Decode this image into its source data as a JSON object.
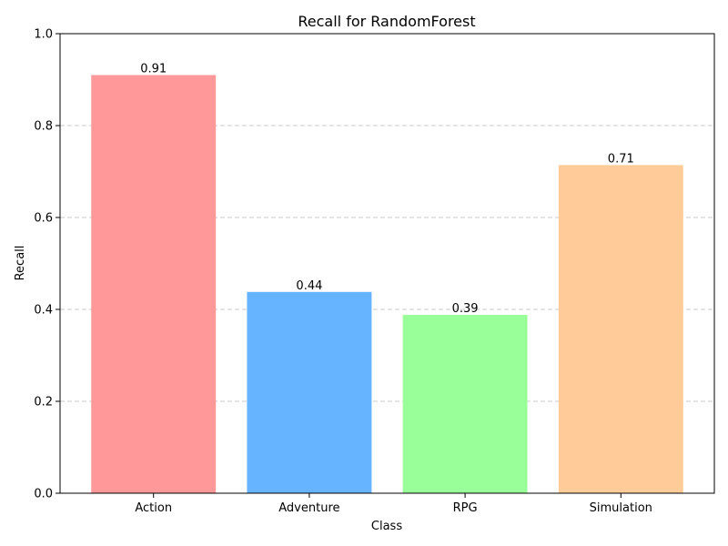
{
  "chart_data": {
    "type": "bar",
    "title": "Recall for RandomForest",
    "xlabel": "Class",
    "ylabel": "Recall",
    "categories": [
      "Action",
      "Adventure",
      "RPG",
      "Simulation"
    ],
    "values": [
      0.91,
      0.438,
      0.388,
      0.714
    ],
    "value_labels": [
      "0.91",
      "0.44",
      "0.39",
      "0.71"
    ],
    "colors": [
      "#ff9999",
      "#66b3ff",
      "#99ff99",
      "#ffcc99"
    ],
    "ylim": [
      0,
      1.0
    ],
    "yticks": [
      0.0,
      0.2,
      0.4,
      0.6,
      0.8,
      1.0
    ],
    "ytick_labels": [
      "0.0",
      "0.2",
      "0.4",
      "0.6",
      "0.8",
      "1.0"
    ],
    "grid": "y-dashed",
    "legend": "none"
  }
}
